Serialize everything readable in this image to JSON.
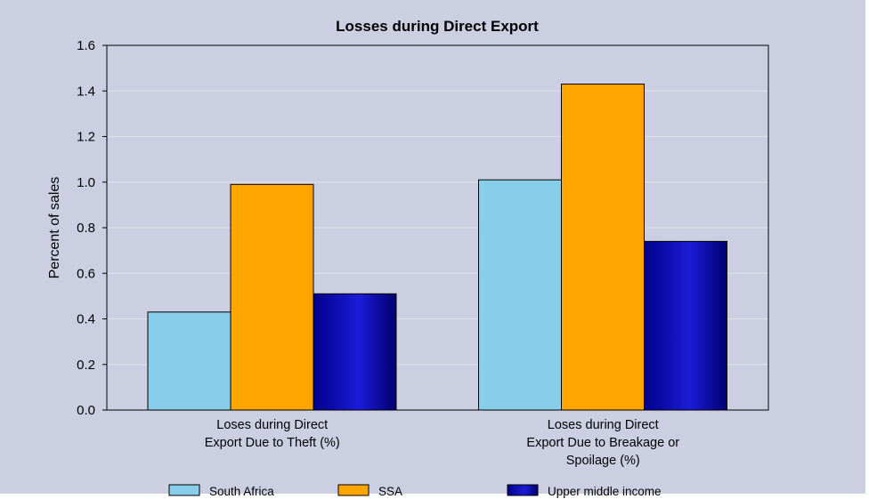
{
  "chart_data": {
    "type": "bar",
    "title": "Losses during Direct Export",
    "ylabel": "Percent of sales",
    "xlabel": "",
    "ylim": [
      0,
      1.6
    ],
    "yticks": [
      "0.0",
      "0.2",
      "0.4",
      "0.6",
      "0.8",
      "1.0",
      "1.2",
      "1.4",
      "1.6"
    ],
    "grid": true,
    "legend_position": "bottom",
    "categories": [
      [
        "Loses during Direct",
        "Export Due to Theft (%)"
      ],
      [
        "Loses during Direct",
        "Export Due to Breakage or",
        "Spoilage (%)"
      ]
    ],
    "series": [
      {
        "name": "South Africa",
        "color": "#87ceeb",
        "values": [
          0.43,
          1.01
        ]
      },
      {
        "name": "SSA",
        "color": "#ffa500",
        "values": [
          0.99,
          1.43
        ]
      },
      {
        "name": "Upper middle income",
        "color": "#00008b",
        "values": [
          0.51,
          0.74
        ]
      }
    ]
  }
}
